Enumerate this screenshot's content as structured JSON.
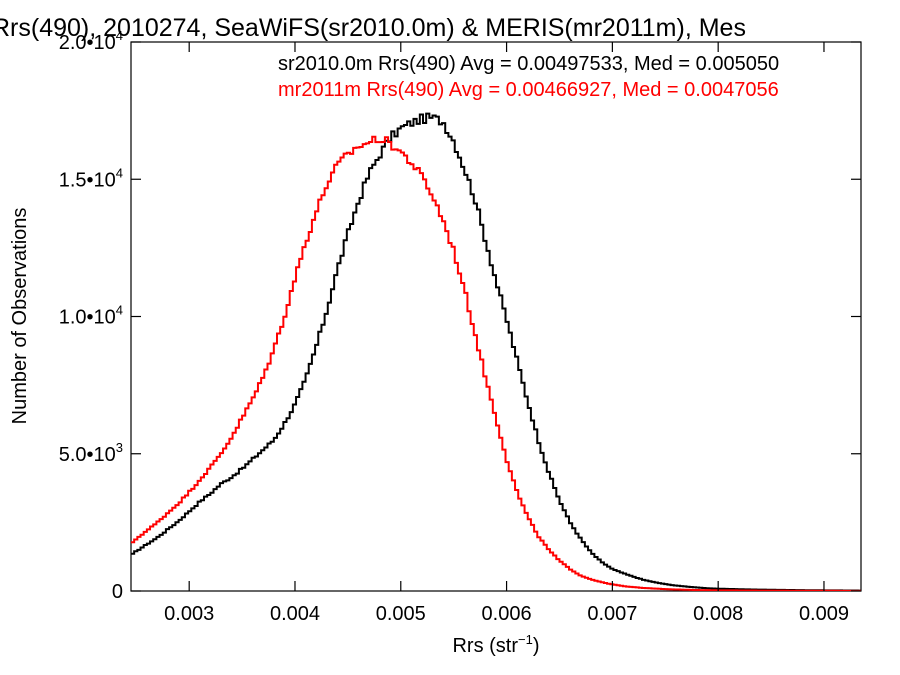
{
  "chart_data": {
    "type": "line",
    "title": "Rrs(490), 2010274, SeaWiFS(sr2010.0m) & MERIS(mr2011m), Mes",
    "xlabel": "Rrs (str",
    "xlabel_sup": "−1",
    "xlabel_end": ")",
    "ylabel": "Number of Observations",
    "xlim": [
      0.00245,
      0.00935
    ],
    "ylim": [
      0,
      20000
    ],
    "xticks": [
      {
        "value": 0.003,
        "label": "0.003"
      },
      {
        "value": 0.004,
        "label": "0.004"
      },
      {
        "value": 0.005,
        "label": "0.005"
      },
      {
        "value": 0.006,
        "label": "0.006"
      },
      {
        "value": 0.007,
        "label": "0.007"
      },
      {
        "value": 0.008,
        "label": "0.008"
      },
      {
        "value": 0.009,
        "label": "0.009"
      }
    ],
    "yticks": [
      {
        "value": 0,
        "mant": "0",
        "exp": ""
      },
      {
        "value": 5000,
        "mant": "5.0•10",
        "exp": "3"
      },
      {
        "value": 10000,
        "mant": "1.0•10",
        "exp": "4"
      },
      {
        "value": 15000,
        "mant": "1.5•10",
        "exp": "4"
      },
      {
        "value": 20000,
        "mant": "2.0•10",
        "exp": "4"
      }
    ],
    "series": [
      {
        "name": "sr2010.0m Rrs(490) Avg = 0.00497533, Med = 0.005050",
        "color": "#000000",
        "x": [
          0.00245,
          0.0025,
          0.0026,
          0.0027,
          0.0028,
          0.0029,
          0.003,
          0.0031,
          0.0032,
          0.0033,
          0.0034,
          0.0035,
          0.0036,
          0.0037,
          0.0038,
          0.0039,
          0.004,
          0.0041,
          0.0042,
          0.0043,
          0.0044,
          0.0045,
          0.0046,
          0.0047,
          0.0048,
          0.0049,
          0.005,
          0.0051,
          0.0052,
          0.0053,
          0.0054,
          0.0055,
          0.0056,
          0.0057,
          0.0058,
          0.0059,
          0.006,
          0.0061,
          0.0062,
          0.0063,
          0.0064,
          0.0065,
          0.0066,
          0.0067,
          0.0068,
          0.0069,
          0.007,
          0.0071,
          0.0072,
          0.0073,
          0.0074,
          0.0075,
          0.0076,
          0.0077,
          0.0078,
          0.0079,
          0.008,
          0.0082,
          0.0084,
          0.0086,
          0.0088,
          0.009,
          0.0092,
          0.00935
        ],
        "y": [
          1300,
          1450,
          1700,
          1950,
          2250,
          2550,
          2900,
          3250,
          3550,
          3900,
          4150,
          4450,
          4800,
          5150,
          5500,
          6100,
          6800,
          7700,
          8900,
          10200,
          11700,
          13000,
          14200,
          15200,
          15900,
          16500,
          16850,
          17050,
          17200,
          17250,
          17100,
          16400,
          15400,
          14300,
          12800,
          11300,
          9900,
          8400,
          6900,
          5500,
          4300,
          3300,
          2500,
          1900,
          1400,
          1050,
          800,
          650,
          520,
          400,
          320,
          250,
          200,
          160,
          130,
          100,
          85,
          65,
          50,
          40,
          30,
          25,
          20,
          15
        ]
      },
      {
        "name": "mr2011m Rrs(490) Avg = 0.00466927, Med = 0.0047056",
        "color": "#ff0000",
        "x": [
          0.00245,
          0.0025,
          0.0026,
          0.0027,
          0.0028,
          0.0029,
          0.003,
          0.0031,
          0.0032,
          0.0033,
          0.0034,
          0.0035,
          0.0036,
          0.0037,
          0.0038,
          0.0039,
          0.004,
          0.0041,
          0.0042,
          0.0043,
          0.0044,
          0.0045,
          0.0046,
          0.0047,
          0.0048,
          0.0049,
          0.005,
          0.0051,
          0.0052,
          0.0053,
          0.0054,
          0.0055,
          0.0056,
          0.0057,
          0.0058,
          0.0059,
          0.006,
          0.0061,
          0.0062,
          0.0063,
          0.0064,
          0.0065,
          0.0066,
          0.0067,
          0.0068,
          0.0069,
          0.007,
          0.0071,
          0.0072,
          0.0073,
          0.0074,
          0.0075,
          0.0076,
          0.0077,
          0.0078,
          0.008,
          0.0082,
          0.0084,
          0.0086,
          0.0088,
          0.009,
          0.00935
        ],
        "y": [
          1700,
          1900,
          2200,
          2500,
          2850,
          3200,
          3600,
          4050,
          4500,
          5000,
          5600,
          6300,
          7000,
          7800,
          8800,
          10000,
          11400,
          12700,
          13800,
          14800,
          15500,
          15900,
          16200,
          16350,
          16500,
          16300,
          16000,
          15600,
          15100,
          14400,
          13500,
          12400,
          11000,
          9400,
          7800,
          6300,
          4800,
          3600,
          2700,
          2000,
          1500,
          1100,
          800,
          560,
          420,
          320,
          240,
          180,
          140,
          110,
          90,
          70,
          55,
          45,
          35,
          25,
          20,
          15,
          12,
          10,
          8,
          5
        ]
      }
    ]
  }
}
